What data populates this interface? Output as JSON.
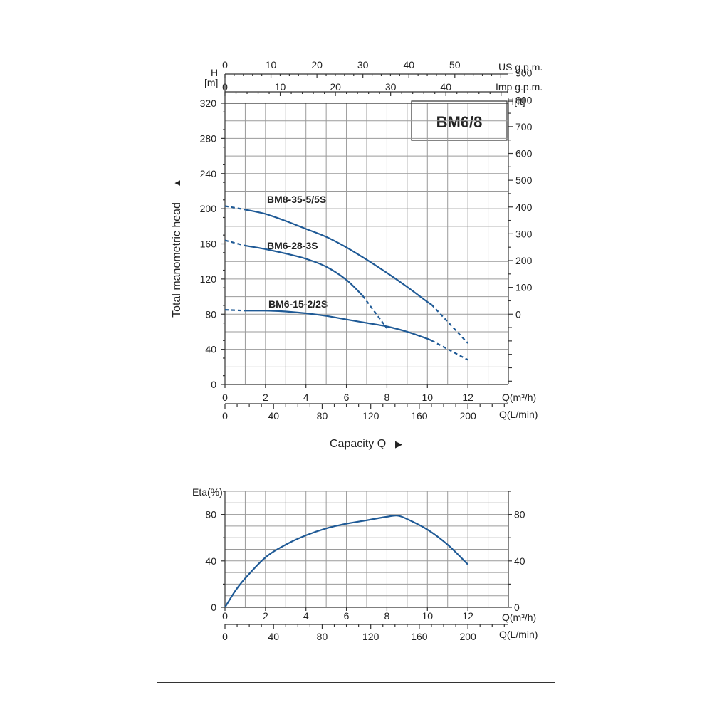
{
  "chart_data": [
    {
      "type": "line",
      "title": "BM6/8",
      "ylabel": "Total manometric head",
      "ylabel_arrow": "▲",
      "xlabel": "Capacity Q",
      "xlabel_arrow": "▶",
      "y_left_unit_h": "H",
      "y_left_unit_m": "[m]",
      "y_right_unit": "H[ft]",
      "x_unit_m3h": "Q(m³/h)",
      "x_unit_lmin": "Q(L/min)",
      "top_unit_us": "US g.p.m.",
      "top_unit_imp": "Imp g.p.m.",
      "ylim": [
        0,
        320
      ],
      "xlim": [
        0,
        14
      ],
      "grid": true,
      "yticks": [
        "0",
        "40",
        "80",
        "120",
        "160",
        "200",
        "240",
        "280",
        "320"
      ],
      "yticks_ft": [
        "0",
        "100",
        "200",
        "300",
        "400",
        "500",
        "600",
        "700",
        "800",
        "900"
      ],
      "xticks_m3h": [
        "0",
        "2",
        "4",
        "6",
        "8",
        "10",
        "12"
      ],
      "xticks_lmin": [
        "0",
        "40",
        "80",
        "120",
        "160",
        "200"
      ],
      "xticks_us": [
        "0",
        "10",
        "20",
        "30",
        "40",
        "50"
      ],
      "xticks_imp": [
        "0",
        "10",
        "20",
        "30",
        "40"
      ],
      "series": [
        {
          "name": "BM8-35-5/5S",
          "solid": [
            [
              1.0,
              199
            ],
            [
              2,
              194
            ],
            [
              3,
              186
            ],
            [
              4,
              177
            ],
            [
              5,
              168
            ],
            [
              6,
              156
            ],
            [
              7,
              142
            ],
            [
              8,
              127
            ],
            [
              9,
              111
            ],
            [
              10,
              94
            ],
            [
              10.2,
              91
            ]
          ],
          "dashed_start": [
            [
              0,
              203
            ],
            [
              1.0,
              199
            ]
          ],
          "dashed_end": [
            [
              10.2,
              91
            ],
            [
              12,
              47
            ]
          ]
        },
        {
          "name": "BM6-28-3S",
          "solid": [
            [
              1.0,
              158
            ],
            [
              2,
              154
            ],
            [
              3,
              149
            ],
            [
              4,
              143
            ],
            [
              5,
              134
            ],
            [
              6,
              119
            ],
            [
              6.8,
              101
            ]
          ],
          "dashed_start": [
            [
              0,
              164
            ],
            [
              1.0,
              158
            ]
          ],
          "dashed_end": [
            [
              6.8,
              101
            ],
            [
              8.0,
              64
            ]
          ]
        },
        {
          "name": "BM6-15-2/2S",
          "solid": [
            [
              1.0,
              84
            ],
            [
              2,
              84
            ],
            [
              3,
              83
            ],
            [
              4,
              81
            ],
            [
              5,
              78
            ],
            [
              6,
              74
            ],
            [
              7,
              70
            ],
            [
              8,
              66
            ],
            [
              9,
              60
            ],
            [
              10,
              52
            ],
            [
              10.2,
              50
            ]
          ],
          "dashed_start": [
            [
              0,
              85
            ],
            [
              1.0,
              84
            ]
          ],
          "dashed_end": [
            [
              10.2,
              50
            ],
            [
              12,
              28
            ]
          ]
        }
      ]
    },
    {
      "type": "line",
      "ylabel": "Eta(%)",
      "ylim": [
        0,
        100
      ],
      "xlim": [
        0,
        14
      ],
      "grid": true,
      "yticks": [
        "0",
        "40",
        "80"
      ],
      "yticks_right": [
        "0",
        "40",
        "80"
      ],
      "xticks_m3h": [
        "0",
        "2",
        "4",
        "6",
        "8",
        "10",
        "12"
      ],
      "xticks_lmin": [
        "0",
        "40",
        "80",
        "120",
        "160",
        "200"
      ],
      "x_unit_m3h": "Q(m³/h)",
      "x_unit_lmin": "Q(L/min)",
      "series": [
        {
          "name": "",
          "points": [
            [
              0,
              0
            ],
            [
              0.5,
              14
            ],
            [
              1,
              25
            ],
            [
              2,
              43
            ],
            [
              3,
              54
            ],
            [
              4,
              62
            ],
            [
              5,
              68
            ],
            [
              6,
              72
            ],
            [
              7,
              75
            ],
            [
              8,
              78
            ],
            [
              8.5,
              79
            ],
            [
              9,
              76
            ],
            [
              10,
              67
            ],
            [
              11,
              54
            ],
            [
              12,
              37
            ]
          ]
        }
      ]
    }
  ]
}
